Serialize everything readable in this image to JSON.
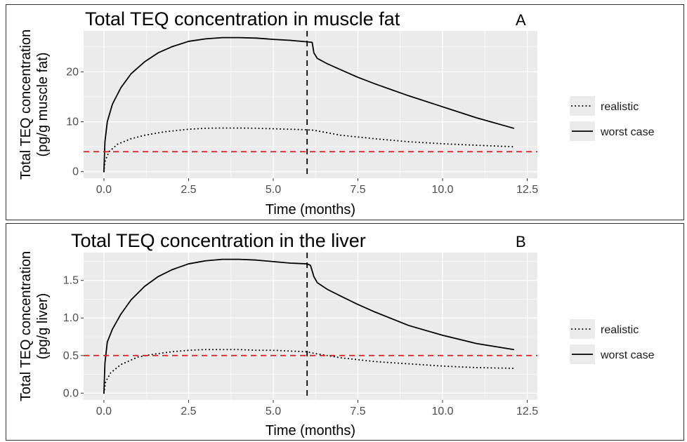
{
  "colors": {
    "panel_bg": "#ebebeb",
    "grid_major": "#ffffff",
    "threshold": "#e31a1c",
    "series": "#000000"
  },
  "legend": {
    "items": [
      {
        "label": "realistic",
        "style": "dotted"
      },
      {
        "label": "worst case",
        "style": "solid"
      }
    ]
  },
  "chart_data": [
    {
      "type": "line",
      "panel": "A",
      "title": "Total TEQ concentration in muscle fat",
      "xlabel": "Time (months)",
      "ylabel": [
        "Total TEQ concentration",
        "(pg/g muscle fat)"
      ],
      "xlim": [
        -0.6,
        12.8
      ],
      "ylim": [
        -1.3,
        28.2
      ],
      "xticks": [
        0.0,
        2.5,
        5.0,
        7.5,
        10.0,
        12.5
      ],
      "xtick_labels": [
        "0.0",
        "2.5",
        "5.0",
        "7.5",
        "10.0",
        "12.5"
      ],
      "yticks": [
        0,
        10,
        20
      ],
      "ytick_labels": [
        "0",
        "10",
        "20"
      ],
      "grid": true,
      "vline": {
        "x": 6.0,
        "style": "dashed",
        "color": "#000000"
      },
      "hline": {
        "y": 4.0,
        "style": "dashed",
        "color": "#e31a1c"
      },
      "series": [
        {
          "name": "worst case",
          "style": "solid",
          "points": [
            [
              0,
              0
            ],
            [
              0.03,
              6
            ],
            [
              0.1,
              10
            ],
            [
              0.25,
              13.5
            ],
            [
              0.5,
              16.8
            ],
            [
              0.8,
              19.6
            ],
            [
              1.2,
              22
            ],
            [
              1.6,
              23.8
            ],
            [
              2,
              25
            ],
            [
              2.5,
              26.1
            ],
            [
              3,
              26.6
            ],
            [
              3.5,
              26.85
            ],
            [
              4,
              26.85
            ],
            [
              4.5,
              26.75
            ],
            [
              5,
              26.5
            ],
            [
              5.5,
              26.3
            ],
            [
              6,
              26
            ],
            [
              6.15,
              25.9
            ],
            [
              6.2,
              23.8
            ],
            [
              6.3,
              22.7
            ],
            [
              6.6,
              21.6
            ],
            [
              7,
              20.4
            ],
            [
              7.5,
              18.9
            ],
            [
              8,
              17.6
            ],
            [
              9,
              15.2
            ],
            [
              10,
              13
            ],
            [
              11,
              10.8
            ],
            [
              12.1,
              8.7
            ]
          ]
        },
        {
          "name": "realistic",
          "style": "dotted",
          "points": [
            [
              0,
              0
            ],
            [
              0.03,
              2
            ],
            [
              0.15,
              4
            ],
            [
              0.4,
              5.5
            ],
            [
              0.8,
              6.6
            ],
            [
              1.2,
              7.3
            ],
            [
              1.8,
              8
            ],
            [
              2.5,
              8.5
            ],
            [
              3,
              8.7
            ],
            [
              3.5,
              8.75
            ],
            [
              4,
              8.75
            ],
            [
              4.5,
              8.7
            ],
            [
              5,
              8.6
            ],
            [
              5.5,
              8.5
            ],
            [
              6,
              8.4
            ],
            [
              6.2,
              8.3
            ],
            [
              6.6,
              7.8
            ],
            [
              7,
              7.3
            ],
            [
              8,
              6.6
            ],
            [
              9,
              6
            ],
            [
              10,
              5.6
            ],
            [
              11,
              5.3
            ],
            [
              12.1,
              5
            ]
          ]
        }
      ]
    },
    {
      "type": "line",
      "panel": "B",
      "title": "Total TEQ concentration in the liver",
      "xlabel": "Time (months)",
      "ylabel": [
        "Total TEQ concentration",
        "(pg/g liver)"
      ],
      "xlim": [
        -0.6,
        12.8
      ],
      "ylim": [
        -0.09,
        1.87
      ],
      "xticks": [
        0.0,
        2.5,
        5.0,
        7.5,
        10.0,
        12.5
      ],
      "xtick_labels": [
        "0.0",
        "2.5",
        "5.0",
        "7.5",
        "10.0",
        "12.5"
      ],
      "yticks": [
        0.0,
        0.5,
        1.0,
        1.5
      ],
      "ytick_labels": [
        "0.0",
        "0.5",
        "1.0",
        "1.5"
      ],
      "grid": true,
      "vline": {
        "x": 6.0,
        "style": "dashed",
        "color": "#000000"
      },
      "hline": {
        "y": 0.5,
        "style": "dashed",
        "color": "#e31a1c"
      },
      "series": [
        {
          "name": "worst case",
          "style": "solid",
          "points": [
            [
              0,
              0
            ],
            [
              0.03,
              0.4
            ],
            [
              0.1,
              0.68
            ],
            [
              0.25,
              0.85
            ],
            [
              0.5,
              1.05
            ],
            [
              0.8,
              1.24
            ],
            [
              1.2,
              1.42
            ],
            [
              1.6,
              1.55
            ],
            [
              2,
              1.64
            ],
            [
              2.5,
              1.72
            ],
            [
              3,
              1.76
            ],
            [
              3.5,
              1.78
            ],
            [
              4,
              1.78
            ],
            [
              4.5,
              1.77
            ],
            [
              5,
              1.75
            ],
            [
              5.5,
              1.73
            ],
            [
              6,
              1.72
            ],
            [
              6.1,
              1.7
            ],
            [
              6.2,
              1.55
            ],
            [
              6.3,
              1.47
            ],
            [
              6.6,
              1.38
            ],
            [
              7,
              1.29
            ],
            [
              7.5,
              1.18
            ],
            [
              8,
              1.08
            ],
            [
              9,
              0.9
            ],
            [
              10,
              0.77
            ],
            [
              11,
              0.66
            ],
            [
              12.1,
              0.58
            ]
          ]
        },
        {
          "name": "realistic",
          "style": "dotted",
          "points": [
            [
              0,
              0
            ],
            [
              0.05,
              0.15
            ],
            [
              0.2,
              0.27
            ],
            [
              0.5,
              0.38
            ],
            [
              1,
              0.48
            ],
            [
              1.5,
              0.52
            ],
            [
              2,
              0.55
            ],
            [
              2.5,
              0.57
            ],
            [
              3,
              0.58
            ],
            [
              3.5,
              0.58
            ],
            [
              4,
              0.58
            ],
            [
              4.5,
              0.57
            ],
            [
              5,
              0.57
            ],
            [
              5.5,
              0.56
            ],
            [
              6,
              0.55
            ],
            [
              6.2,
              0.53
            ],
            [
              6.6,
              0.5
            ],
            [
              7,
              0.47
            ],
            [
              8,
              0.42
            ],
            [
              9,
              0.39
            ],
            [
              10,
              0.36
            ],
            [
              11,
              0.34
            ],
            [
              12.1,
              0.33
            ]
          ]
        }
      ]
    }
  ]
}
